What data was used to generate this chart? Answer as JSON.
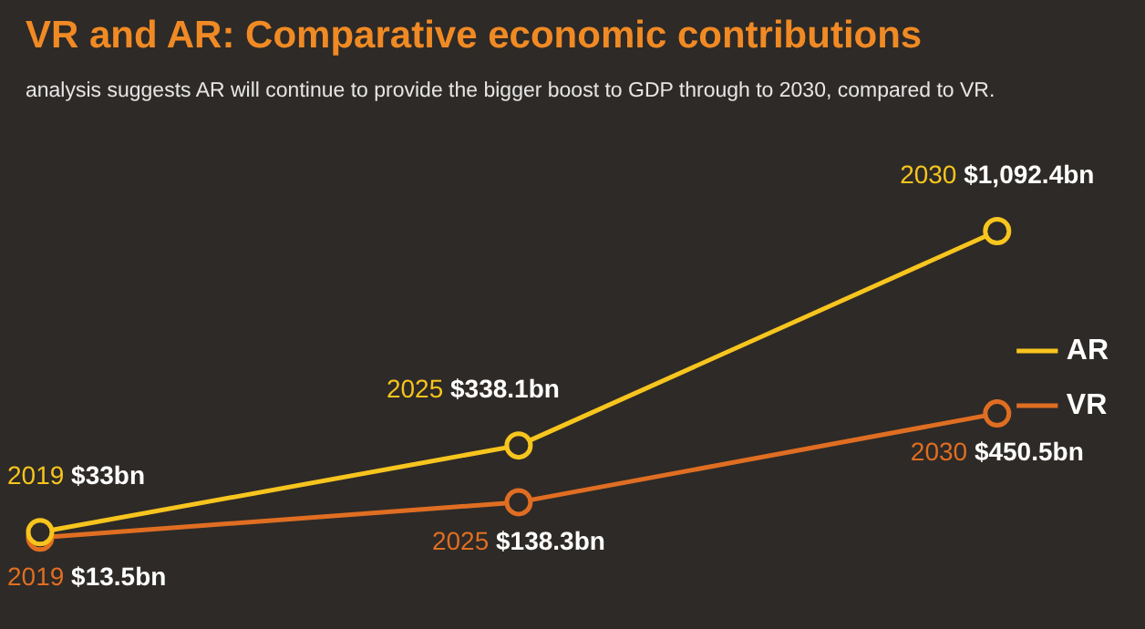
{
  "chart_data": {
    "type": "line",
    "title": "VR and AR: Comparative economic contributions",
    "subtitle": "analysis suggests AR will continue to provide the bigger boost to GDP through to 2030, compared to VR.",
    "categories": [
      "2019",
      "2025",
      "2030"
    ],
    "series": [
      {
        "name": "AR",
        "color": "#f7c51e",
        "values": [
          33,
          338.1,
          1092.4
        ],
        "value_labels": [
          "$33bn",
          "$338.1bn",
          "$1,092.4bn"
        ]
      },
      {
        "name": "VR",
        "color": "#e06e22",
        "values": [
          13.5,
          138.3,
          450.5
        ],
        "value_labels": [
          "$13.5bn",
          "$138.3bn",
          "$450.5bn"
        ]
      }
    ],
    "legend": "right",
    "marker": "circle",
    "line_style": "solid",
    "grid": false,
    "tick_labels": false
  }
}
